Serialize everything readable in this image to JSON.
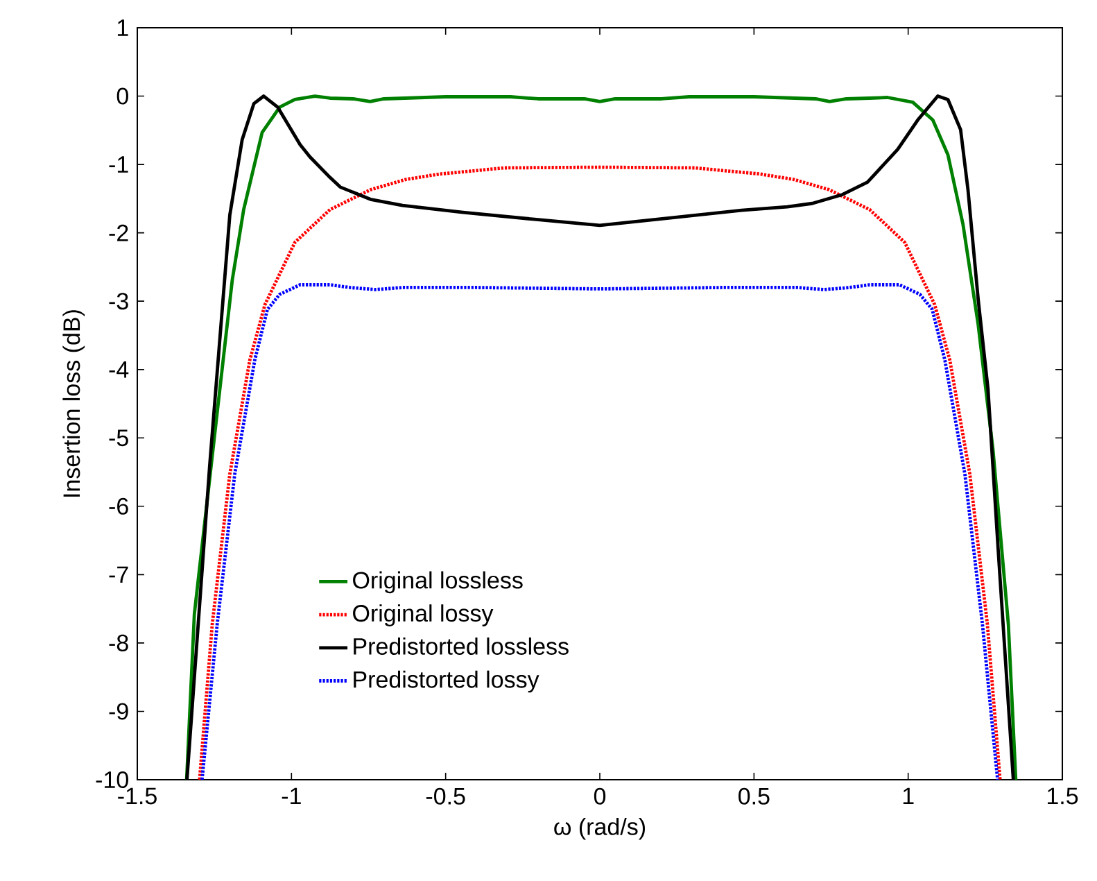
{
  "chart_data": {
    "type": "line",
    "xlabel": "ω (rad/s)",
    "ylabel": "Insertion loss (dB)",
    "xlim": [
      -1.5,
      1.5
    ],
    "ylim": [
      -10,
      1
    ],
    "xticks": [
      -1.5,
      -1,
      -0.5,
      0,
      0.5,
      1,
      1.5
    ],
    "yticks": [
      -10,
      -9,
      -8,
      -7,
      -6,
      -5,
      -4,
      -3,
      -2,
      -1,
      0,
      1
    ],
    "grid": false,
    "legend": "bottom",
    "marker": "none",
    "series": [
      {
        "name": "Original lossless",
        "color": "#008000",
        "line_style": "solid",
        "x": [
          -1.34,
          -1.315,
          -1.249,
          -1.192,
          -1.155,
          -1.095,
          -1.038,
          -0.989,
          -0.924,
          -0.875,
          -0.8,
          -0.745,
          -0.7,
          -0.5,
          -0.29,
          -0.2,
          -0.05,
          0,
          0.05,
          0.2,
          0.29,
          0.5,
          0.7,
          0.745,
          0.8,
          0.875,
          0.933,
          1.015,
          1.08,
          1.129,
          1.178,
          1.227,
          1.275,
          1.325,
          1.349
        ],
        "values": [
          -10,
          -7.58,
          -4.95,
          -2.69,
          -1.66,
          -0.53,
          -0.16,
          -0.05,
          0,
          -0.03,
          -0.04,
          -0.08,
          -0.04,
          -0.01,
          -0.01,
          -0.04,
          -0.04,
          -0.08,
          -0.04,
          -0.04,
          -0.01,
          -0.01,
          -0.04,
          -0.08,
          -0.04,
          -0.03,
          -0.02,
          -0.09,
          -0.35,
          -0.86,
          -1.88,
          -3.34,
          -5.17,
          -7.73,
          -10
        ]
      },
      {
        "name": "Original lossy",
        "color": "#ff0000",
        "line_style": "dotted",
        "x": [
          -1.298,
          -1.257,
          -1.2,
          -1.135,
          -1.086,
          -0.989,
          -0.875,
          -0.744,
          -0.63,
          -0.52,
          -0.309,
          0,
          0.309,
          0.52,
          0.63,
          0.744,
          0.875,
          0.989,
          1.086,
          1.135,
          1.2,
          1.257,
          1.298
        ],
        "values": [
          -10,
          -7.73,
          -5.53,
          -3.86,
          -3.05,
          -2.14,
          -1.66,
          -1.37,
          -1.22,
          -1.14,
          -1.05,
          -1.04,
          -1.05,
          -1.14,
          -1.22,
          -1.37,
          -1.66,
          -2.14,
          -3.05,
          -3.86,
          -5.53,
          -7.73,
          -10
        ]
      },
      {
        "name": "Predistorted lossless",
        "color": "#000000",
        "line_style": "solid",
        "x": [
          -1.339,
          -1.265,
          -1.2,
          -1.16,
          -1.122,
          -1.09,
          -1.045,
          -0.972,
          -0.94,
          -0.875,
          -0.842,
          -0.744,
          -0.64,
          -0.444,
          -0.218,
          0,
          0.234,
          0.46,
          0.608,
          0.689,
          0.787,
          0.868,
          0.966,
          1.031,
          1.096,
          1.129,
          1.17,
          1.194,
          1.227,
          1.259,
          1.292,
          1.324,
          1.341
        ],
        "values": [
          -10,
          -5.39,
          -1.74,
          -0.64,
          -0.11,
          0,
          -0.16,
          -0.71,
          -0.89,
          -1.19,
          -1.33,
          -1.51,
          -1.6,
          -1.7,
          -1.8,
          -1.89,
          -1.78,
          -1.67,
          -1.62,
          -1.57,
          -1.44,
          -1.26,
          -0.78,
          -0.35,
          0,
          -0.05,
          -0.49,
          -1.37,
          -2.97,
          -4.29,
          -6.64,
          -8.83,
          -10
        ]
      },
      {
        "name": "Predistorted lossy",
        "color": "#0000ff",
        "line_style": "dotted",
        "x": [
          -1.29,
          -1.241,
          -1.184,
          -1.119,
          -1.078,
          -1.038,
          -0.972,
          -0.875,
          -0.81,
          -0.728,
          -0.64,
          -0.4,
          0,
          0.4,
          0.64,
          0.728,
          0.81,
          0.875,
          0.972,
          1.038,
          1.078,
          1.119,
          1.184,
          1.241,
          1.29
        ],
        "values": [
          -10,
          -7.73,
          -5.53,
          -3.86,
          -3.12,
          -2.9,
          -2.76,
          -2.76,
          -2.8,
          -2.83,
          -2.8,
          -2.8,
          -2.82,
          -2.8,
          -2.8,
          -2.83,
          -2.8,
          -2.76,
          -2.76,
          -2.9,
          -3.12,
          -3.86,
          -5.53,
          -7.73,
          -10
        ]
      }
    ]
  }
}
